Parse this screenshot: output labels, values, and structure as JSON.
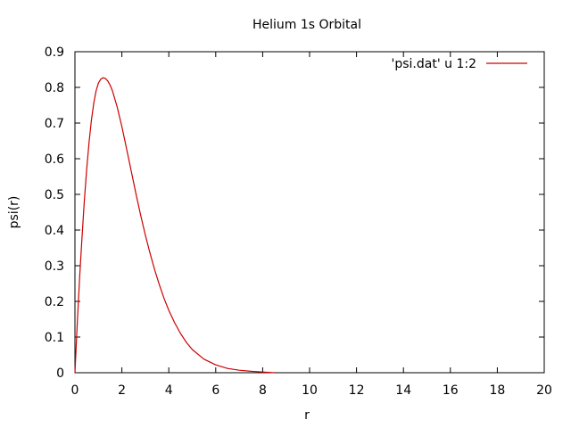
{
  "chart_data": {
    "type": "line",
    "title": "Helium 1s Orbital",
    "xlabel": "r",
    "ylabel": "psi(r)",
    "xlim": [
      0,
      20
    ],
    "ylim": [
      0,
      0.9
    ],
    "xticks": [
      0,
      2,
      4,
      6,
      8,
      10,
      12,
      14,
      16,
      18,
      20
    ],
    "yticks": [
      0,
      0.1,
      0.2,
      0.3,
      0.4,
      0.5,
      0.6,
      0.7,
      0.8,
      0.9
    ],
    "grid": false,
    "legend_position": "top-right",
    "series": [
      {
        "name": "'psi.dat' u 1:2",
        "color": "#cc0000",
        "x": [
          0,
          0.1,
          0.2,
          0.3,
          0.4,
          0.5,
          0.6,
          0.7,
          0.8,
          0.9,
          1.0,
          1.1,
          1.2,
          1.3,
          1.4,
          1.5,
          1.6,
          1.8,
          2.0,
          2.2,
          2.4,
          2.6,
          2.8,
          3.0,
          3.2,
          3.4,
          3.6,
          3.8,
          4.0,
          4.25,
          4.5,
          4.75,
          5.0,
          5.5,
          6.0,
          6.5,
          7.0,
          7.5,
          8.0,
          8.5
        ],
        "y": [
          0,
          0.14,
          0.267,
          0.378,
          0.482,
          0.57,
          0.645,
          0.707,
          0.755,
          0.79,
          0.812,
          0.823,
          0.827,
          0.825,
          0.818,
          0.806,
          0.79,
          0.745,
          0.69,
          0.628,
          0.565,
          0.502,
          0.442,
          0.386,
          0.335,
          0.288,
          0.246,
          0.208,
          0.175,
          0.14,
          0.11,
          0.085,
          0.065,
          0.038,
          0.022,
          0.012,
          0.007,
          0.004,
          0.002,
          0.0
        ]
      }
    ]
  }
}
